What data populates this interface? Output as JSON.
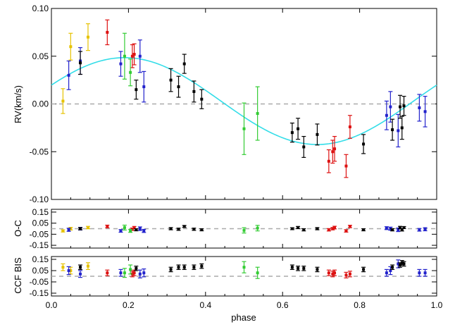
{
  "chart_data": [
    {
      "type": "scatter",
      "panel": "rv",
      "ylabel": "RV(km/s)",
      "xlim": [
        0.0,
        1.0
      ],
      "ylim": [
        -0.1,
        0.1
      ],
      "yticks": [
        -0.1,
        -0.05,
        0.0,
        0.05,
        0.1
      ],
      "ytick_labels": [
        "-0.10",
        "-0.05",
        "0.00",
        "0.05",
        "0.10"
      ],
      "zero_line": true,
      "model_curve": {
        "color": "#33dde8",
        "offset": 0.003,
        "amplitude": 0.0455,
        "phase_shift": 0.06
      },
      "series": [
        {
          "color": "#e6c200",
          "points": [
            [
              0.03,
              0.003,
              0.013
            ],
            [
              0.05,
              0.06,
              0.014
            ],
            [
              0.095,
              0.07,
              0.014
            ]
          ]
        },
        {
          "color": "#2222cc",
          "points": [
            [
              0.045,
              0.03,
              0.015
            ],
            [
              0.075,
              0.045,
              0.014
            ],
            [
              0.18,
              0.042,
              0.013
            ],
            [
              0.23,
              0.05,
              0.017
            ],
            [
              0.24,
              0.018,
              0.016
            ],
            [
              0.87,
              -0.012,
              0.015
            ],
            [
              0.88,
              -0.003,
              0.016
            ],
            [
              0.9,
              -0.028,
              0.017
            ],
            [
              0.955,
              -0.004,
              0.014
            ],
            [
              0.97,
              -0.008,
              0.016
            ]
          ]
        },
        {
          "color": "#dd1111",
          "points": [
            [
              0.145,
              0.075,
              0.013
            ],
            [
              0.21,
              0.05,
              0.012
            ],
            [
              0.215,
              0.052,
              0.011
            ],
            [
              0.72,
              -0.06,
              0.012
            ],
            [
              0.73,
              -0.05,
              0.012
            ],
            [
              0.735,
              -0.047,
              0.013
            ],
            [
              0.765,
              -0.065,
              0.012
            ],
            [
              0.775,
              -0.024,
              0.012
            ]
          ]
        },
        {
          "color": "#33cc33",
          "points": [
            [
              0.19,
              0.05,
              0.024
            ],
            [
              0.205,
              0.033,
              0.014
            ],
            [
              0.5,
              -0.026,
              0.027
            ],
            [
              0.535,
              -0.01,
              0.028
            ]
          ]
        },
        {
          "color": "#000000",
          "points": [
            [
              0.075,
              0.043,
              0.012
            ],
            [
              0.22,
              0.015,
              0.01
            ],
            [
              0.31,
              0.025,
              0.012
            ],
            [
              0.33,
              0.018,
              0.011
            ],
            [
              0.345,
              0.042,
              0.01
            ],
            [
              0.37,
              0.013,
              0.011
            ],
            [
              0.39,
              0.005,
              0.01
            ],
            [
              0.625,
              -0.03,
              0.01
            ],
            [
              0.64,
              -0.026,
              0.011
            ],
            [
              0.655,
              -0.045,
              0.011
            ],
            [
              0.69,
              -0.032,
              0.011
            ],
            [
              0.81,
              -0.042,
              0.01
            ],
            [
              0.885,
              -0.027,
              0.011
            ],
            [
              0.905,
              -0.003,
              0.012
            ],
            [
              0.91,
              -0.025,
              0.012
            ],
            [
              0.915,
              -0.002,
              0.01
            ]
          ]
        }
      ]
    },
    {
      "type": "scatter",
      "panel": "oc",
      "ylabel": "O-C",
      "xlim": [
        0.0,
        1.0
      ],
      "ylim": [
        -0.175,
        0.175
      ],
      "yticks": [
        -0.15,
        -0.05,
        0.05,
        0.15
      ],
      "ytick_labels": [
        "-0.15",
        "-0.05",
        "0.05",
        "0.15"
      ],
      "zero_line": true,
      "series": [
        {
          "color": "#e6c200",
          "points": [
            [
              0.03,
              -0.02,
              0.01
            ],
            [
              0.05,
              0.0,
              0.012
            ],
            [
              0.095,
              0.01,
              0.011
            ]
          ]
        },
        {
          "color": "#2222cc",
          "points": [
            [
              0.045,
              -0.01,
              0.014
            ],
            [
              0.075,
              0.0,
              0.012
            ],
            [
              0.18,
              -0.02,
              0.012
            ],
            [
              0.23,
              0.0,
              0.016
            ],
            [
              0.24,
              -0.02,
              0.014
            ],
            [
              0.87,
              0.005,
              0.013
            ],
            [
              0.88,
              0.0,
              0.014
            ],
            [
              0.9,
              -0.01,
              0.016
            ],
            [
              0.955,
              -0.01,
              0.012
            ],
            [
              0.97,
              -0.005,
              0.014
            ]
          ]
        },
        {
          "color": "#dd1111",
          "points": [
            [
              0.145,
              0.02,
              0.012
            ],
            [
              0.21,
              -0.005,
              0.011
            ],
            [
              0.215,
              0.01,
              0.01
            ],
            [
              0.72,
              -0.01,
              0.011
            ],
            [
              0.73,
              0.0,
              0.011
            ],
            [
              0.735,
              0.01,
              0.012
            ],
            [
              0.765,
              -0.02,
              0.011
            ],
            [
              0.775,
              0.02,
              0.011
            ]
          ]
        },
        {
          "color": "#33cc33",
          "points": [
            [
              0.19,
              0.01,
              0.022
            ],
            [
              0.205,
              -0.02,
              0.013
            ],
            [
              0.5,
              -0.015,
              0.024
            ],
            [
              0.535,
              0.005,
              0.025
            ]
          ]
        },
        {
          "color": "#000000",
          "points": [
            [
              0.075,
              0.0,
              0.01
            ],
            [
              0.22,
              -0.01,
              0.009
            ],
            [
              0.31,
              0.0,
              0.01
            ],
            [
              0.33,
              -0.005,
              0.01
            ],
            [
              0.345,
              0.02,
              0.009
            ],
            [
              0.37,
              -0.005,
              0.01
            ],
            [
              0.39,
              -0.01,
              0.009
            ],
            [
              0.625,
              0.0,
              0.009
            ],
            [
              0.64,
              0.01,
              0.01
            ],
            [
              0.655,
              -0.01,
              0.01
            ],
            [
              0.69,
              0.0,
              0.01
            ],
            [
              0.81,
              -0.01,
              0.009
            ],
            [
              0.885,
              -0.01,
              0.01
            ],
            [
              0.905,
              0.01,
              0.011
            ],
            [
              0.91,
              -0.01,
              0.011
            ],
            [
              0.915,
              0.01,
              0.009
            ]
          ]
        }
      ]
    },
    {
      "type": "scatter",
      "panel": "bis",
      "ylabel": "CCF BIS",
      "xlabel": "phase",
      "xlim": [
        0.0,
        1.0
      ],
      "ylim": [
        -0.175,
        0.175
      ],
      "yticks": [
        -0.15,
        -0.05,
        0.05,
        0.15
      ],
      "ytick_labels": [
        "-0.15",
        "-0.05",
        "0.05",
        "0.15"
      ],
      "xticks": [
        0.0,
        0.2,
        0.4,
        0.6,
        0.8,
        1.0
      ],
      "xtick_labels": [
        "0.0",
        "0.2",
        "0.4",
        "0.6",
        "0.8",
        "1.0"
      ],
      "zero_line": true,
      "series": [
        {
          "color": "#e6c200",
          "points": [
            [
              0.03,
              0.08,
              0.03
            ],
            [
              0.05,
              0.05,
              0.03
            ],
            [
              0.095,
              0.09,
              0.03
            ]
          ]
        },
        {
          "color": "#2222cc",
          "points": [
            [
              0.045,
              0.05,
              0.035
            ],
            [
              0.075,
              0.02,
              0.03
            ],
            [
              0.18,
              0.03,
              0.03
            ],
            [
              0.23,
              0.02,
              0.035
            ],
            [
              0.24,
              0.03,
              0.035
            ],
            [
              0.87,
              0.03,
              0.03
            ],
            [
              0.88,
              0.05,
              0.035
            ],
            [
              0.9,
              0.11,
              0.035
            ],
            [
              0.955,
              0.03,
              0.03
            ],
            [
              0.97,
              0.03,
              0.03
            ]
          ]
        },
        {
          "color": "#dd1111",
          "points": [
            [
              0.145,
              0.03,
              0.025
            ],
            [
              0.21,
              0.02,
              0.025
            ],
            [
              0.215,
              0.03,
              0.025
            ],
            [
              0.72,
              0.03,
              0.025
            ],
            [
              0.73,
              0.02,
              0.025
            ],
            [
              0.735,
              0.03,
              0.025
            ],
            [
              0.765,
              0.01,
              0.025
            ],
            [
              0.775,
              0.02,
              0.025
            ]
          ]
        },
        {
          "color": "#33cc33",
          "points": [
            [
              0.19,
              0.03,
              0.04
            ],
            [
              0.205,
              0.06,
              0.04
            ],
            [
              0.5,
              0.08,
              0.05
            ],
            [
              0.535,
              0.03,
              0.05
            ]
          ]
        },
        {
          "color": "#000000",
          "points": [
            [
              0.075,
              0.08,
              0.02
            ],
            [
              0.22,
              0.07,
              0.02
            ],
            [
              0.31,
              0.06,
              0.02
            ],
            [
              0.33,
              0.08,
              0.02
            ],
            [
              0.345,
              0.08,
              0.02
            ],
            [
              0.37,
              0.08,
              0.02
            ],
            [
              0.39,
              0.09,
              0.02
            ],
            [
              0.625,
              0.08,
              0.02
            ],
            [
              0.64,
              0.07,
              0.02
            ],
            [
              0.655,
              0.07,
              0.02
            ],
            [
              0.69,
              0.06,
              0.02
            ],
            [
              0.81,
              0.06,
              0.02
            ],
            [
              0.885,
              0.08,
              0.02
            ],
            [
              0.905,
              0.1,
              0.02
            ],
            [
              0.91,
              0.12,
              0.02
            ],
            [
              0.915,
              0.11,
              0.02
            ]
          ]
        }
      ]
    }
  ]
}
